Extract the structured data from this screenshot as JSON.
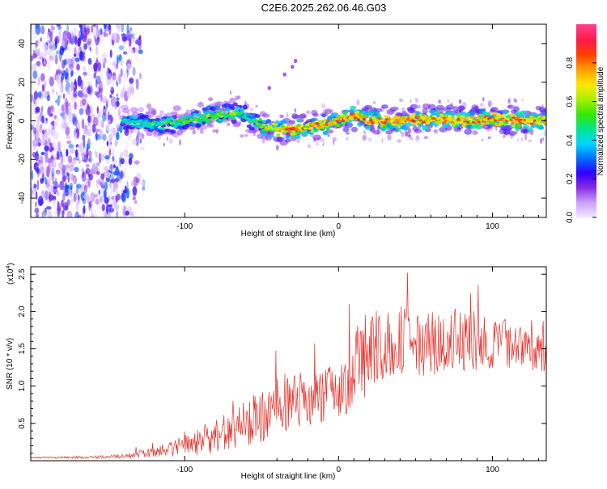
{
  "title": "C2E6.2025.262.06.46.G03",
  "chart_data": [
    {
      "type": "heatmap",
      "name": "spectrogram",
      "xlabel": "Height of straight line (km)",
      "ylabel": "Frequency (Hz)",
      "xlim": [
        -200,
        135
      ],
      "ylim": [
        -50,
        50
      ],
      "xticks": [
        -100,
        0,
        100
      ],
      "yticks": [
        -40,
        -20,
        0,
        20,
        40
      ],
      "xtick_labels": [
        "-100",
        "0",
        "100"
      ],
      "ytick_labels": [
        "-40",
        "-20",
        "0",
        "20",
        "40"
      ],
      "colorbar": {
        "label": "Normalized spectral amplitude",
        "range": [
          0,
          1
        ],
        "ticks": [
          0.0,
          0.2,
          0.4,
          0.6,
          0.8
        ],
        "tick_labels": [
          "0.0",
          "0.2",
          "0.4",
          "0.6",
          "0.8"
        ],
        "colormap": [
          "#f2e6ff",
          "#c9a0ff",
          "#8a2be2",
          "#2d00ff",
          "#0072ff",
          "#00d6ff",
          "#00e68a",
          "#39e600",
          "#aaf000",
          "#ffe600",
          "#ffa000",
          "#ff4000",
          "#ff1a4a",
          "#ff3d8a"
        ]
      },
      "ridge_x": [
        -140,
        -120,
        -100,
        -80,
        -65,
        -55,
        -45,
        -30,
        -20,
        -10,
        0,
        10,
        20,
        40,
        60,
        80,
        100,
        120,
        135
      ],
      "ridge_y": [
        0,
        -2,
        0,
        3,
        4,
        0,
        -4,
        -5,
        -3,
        -2,
        0,
        3,
        0,
        0,
        1,
        0,
        1,
        0,
        -1
      ],
      "ridge_amplitude": [
        0.45,
        0.5,
        0.55,
        0.6,
        0.55,
        0.5,
        0.75,
        0.85,
        0.8,
        0.75,
        0.8,
        0.85,
        0.85,
        0.85,
        0.85,
        0.85,
        0.85,
        0.85,
        0.8
      ],
      "noise_region_x": [
        -200,
        -125
      ],
      "harmonic_x": [
        -45,
        -35,
        -30,
        -28
      ],
      "harmonic_y": [
        17,
        24,
        28,
        31
      ]
    },
    {
      "type": "line",
      "name": "snr",
      "xlabel": "Height of straight line (km)",
      "ylabel": "SNR (10 * v/v)",
      "y_multiplier_label": "(x10",
      "y_multiplier_exponent": "4",
      "xlim": [
        -200,
        135
      ],
      "ylim": [
        0,
        2.6
      ],
      "xticks": [
        -100,
        0,
        100
      ],
      "yticks": [
        0.5,
        1.0,
        1.5,
        2.0,
        2.5
      ],
      "xtick_labels": [
        "-100",
        "0",
        "100"
      ],
      "ytick_labels": [
        "0.5",
        "1.0",
        "1.5",
        "2.0",
        "2.5"
      ],
      "color": "#e8302a",
      "envelope_x": [
        -200,
        -150,
        -130,
        -110,
        -90,
        -70,
        -50,
        -40,
        -30,
        -20,
        -10,
        0,
        10,
        20,
        30,
        40,
        60,
        80,
        100,
        120,
        135
      ],
      "envelope_y": [
        0.04,
        0.05,
        0.08,
        0.15,
        0.25,
        0.4,
        0.6,
        0.75,
        0.8,
        0.82,
        0.85,
        0.95,
        1.25,
        1.45,
        1.55,
        1.6,
        1.6,
        1.6,
        1.55,
        1.55,
        1.55
      ],
      "envelope_noise": [
        0.01,
        0.02,
        0.05,
        0.1,
        0.18,
        0.28,
        0.35,
        0.4,
        0.4,
        0.35,
        0.35,
        0.4,
        0.55,
        0.6,
        0.55,
        0.5,
        0.45,
        0.45,
        0.4,
        0.35,
        0.35
      ]
    }
  ]
}
